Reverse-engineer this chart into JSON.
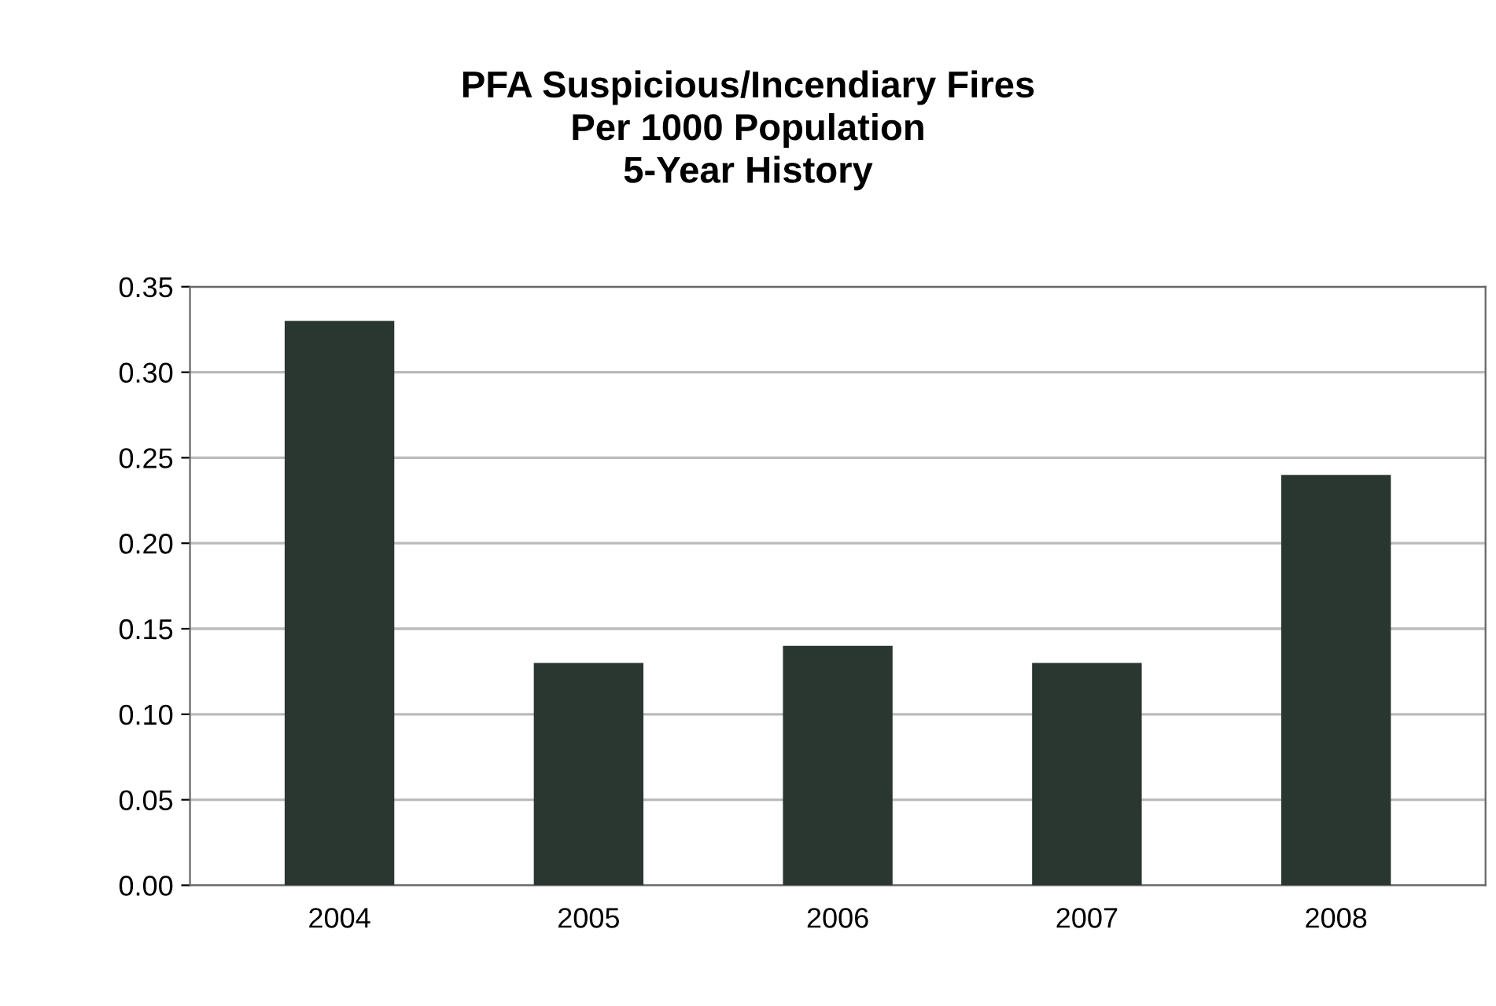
{
  "chart_data": {
    "type": "bar",
    "title": "PFA Suspicious/Incendiary Fires\nPer 1000 Population\n5-Year History",
    "categories": [
      "2004",
      "2005",
      "2006",
      "2007",
      "2008"
    ],
    "values": [
      0.33,
      0.13,
      0.14,
      0.13,
      0.24
    ],
    "color": "#2a3630",
    "ylim": [
      0,
      0.35
    ],
    "yticks": [
      {
        "value": 0,
        "label": "0.00"
      },
      {
        "value": 0.05,
        "label": "0.05"
      },
      {
        "value": 0.1,
        "label": "0.10"
      },
      {
        "value": 0.15,
        "label": "0.15"
      },
      {
        "value": 0.2,
        "label": "0.20"
      },
      {
        "value": 0.25,
        "label": "0.25"
      },
      {
        "value": 0.3,
        "label": "0.30"
      },
      {
        "value": 0.35,
        "label": "0.35"
      }
    ],
    "grid": "y"
  }
}
